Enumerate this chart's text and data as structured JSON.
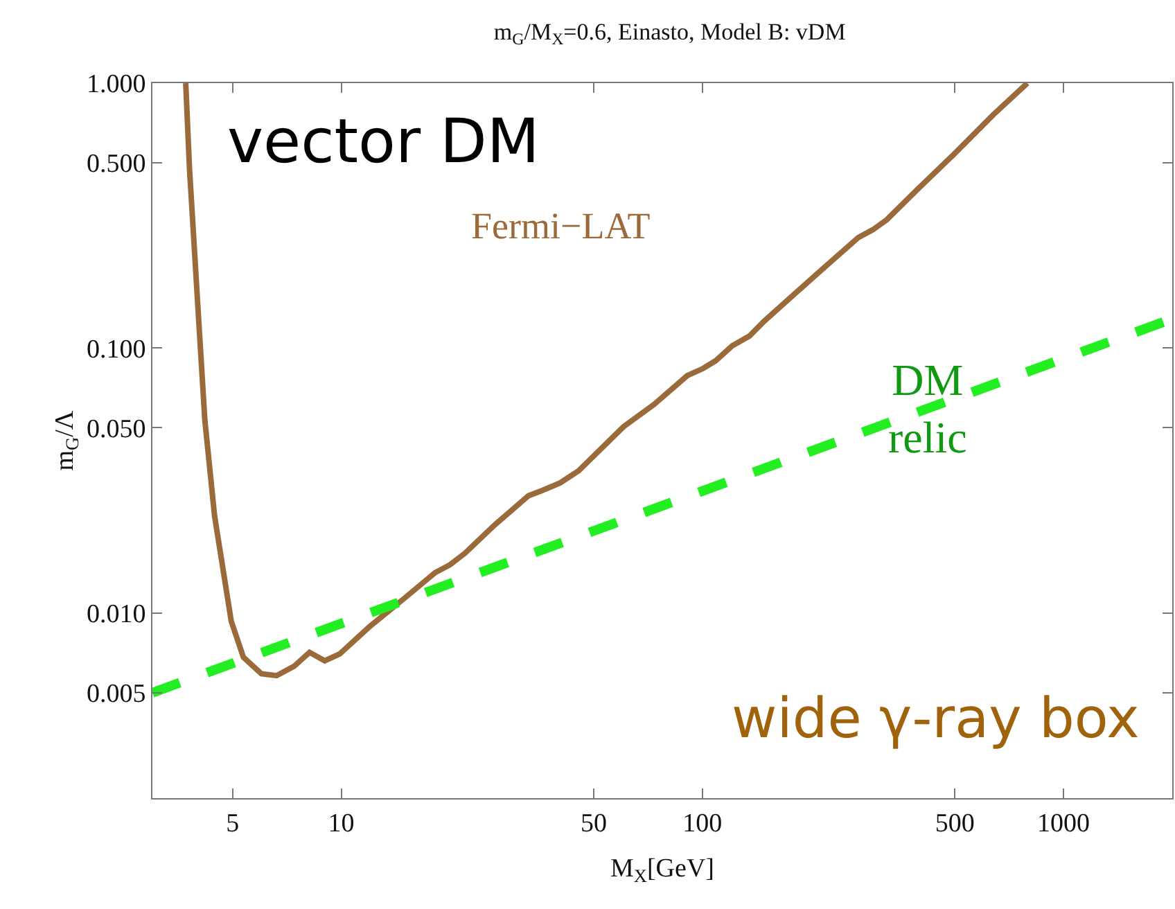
{
  "chart_data": {
    "type": "line",
    "title": "m$_{G}$/M$_{X}$=0.6, Einasto, Model B: vDM",
    "xlabel": "M$_{X}$[GeV]",
    "ylabel": "m$_{G}$/Λ",
    "log": "xy",
    "marker": "none",
    "xlim": [
      3,
      2000
    ],
    "ylim": [
      0.002,
      1.0
    ],
    "xticks": [
      5,
      10,
      50,
      100,
      500,
      1000
    ],
    "yticks": [
      0.005,
      {
        "value": 0.01,
        "label": "0.010"
      },
      {
        "value": 0.05,
        "label": "0.050"
      },
      {
        "value": 0.1,
        "label": "0.100"
      },
      {
        "value": 0.5,
        "label": "0.500"
      },
      {
        "value": 1.0,
        "label": "1.000"
      }
    ],
    "series": [
      {
        "color": "#9b6a3a",
        "line_style": "solid",
        "x": [
          3.71,
          3.8,
          4.05,
          4.19,
          4.46,
          4.96,
          5.36,
          6.01,
          6.62,
          7.41,
          8.17,
          9.0,
          9.9,
          12.0,
          15.0,
          18.2,
          20.0,
          22,
          26.7,
          33,
          36,
          40.4,
          45.4,
          60.5,
          73.4,
          90.8,
          100,
          109,
          121,
          135,
          148,
          180,
          219,
          270,
          297,
          324,
          394,
          495,
          639,
          794
        ],
        "values": [
          1.0,
          0.475,
          0.114,
          0.0536,
          0.0232,
          0.0093,
          0.0068,
          0.0059,
          0.0058,
          0.0063,
          0.0071,
          0.0066,
          0.007,
          0.0089,
          0.0114,
          0.0142,
          0.0152,
          0.0168,
          0.0216,
          0.0277,
          0.029,
          0.031,
          0.0344,
          0.0505,
          0.0612,
          0.0787,
          0.0835,
          0.0897,
          0.102,
          0.111,
          0.126,
          0.16,
          0.203,
          0.261,
          0.28,
          0.305,
          0.397,
          0.536,
          0.76,
          1.0
        ]
      },
      {
        "color": "#22ee22",
        "line_style": "dashed",
        "x": [
          3,
          2000
        ],
        "values": [
          0.005,
          0.129
        ]
      }
    ],
    "annotations": [
      "vector DM",
      "Fermi−LAT",
      "DM\nrelic",
      "wide γ-ray box"
    ]
  }
}
